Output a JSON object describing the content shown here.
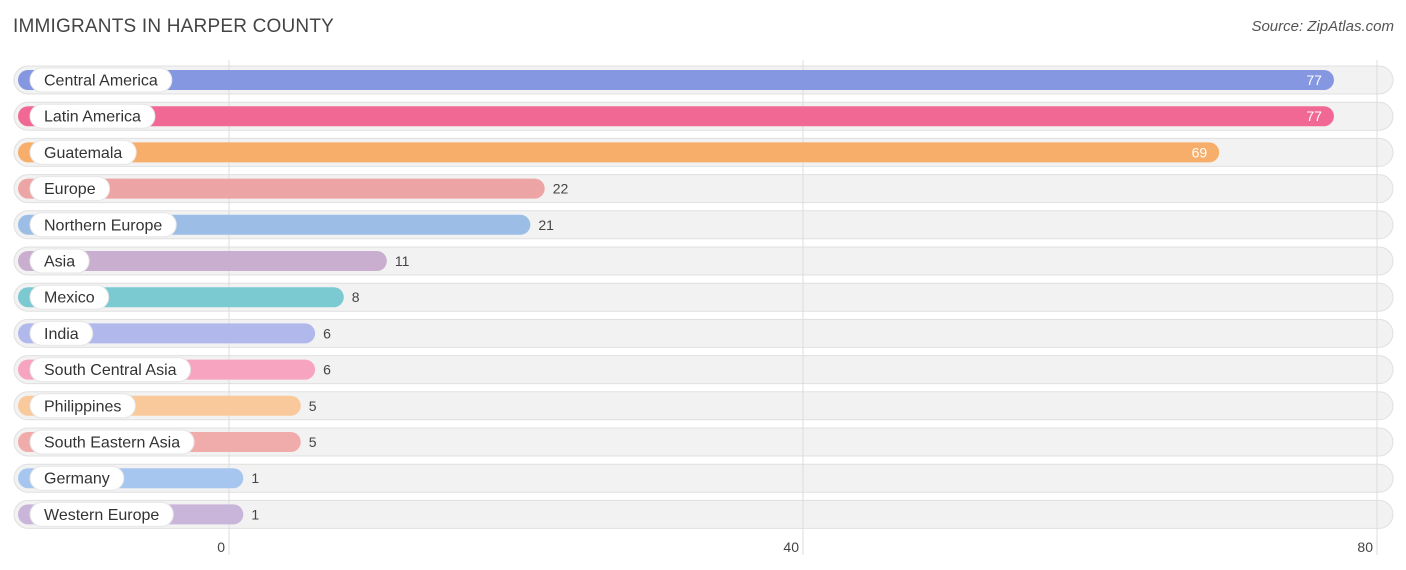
{
  "chart_data": {
    "type": "bar",
    "orientation": "horizontal",
    "title": "IMMIGRANTS IN HARPER COUNTY",
    "source": "Source: ZipAtlas.com",
    "xlabel": "",
    "ylabel": "",
    "xlim": [
      0,
      80
    ],
    "ticks": [
      0,
      40,
      80
    ],
    "grid": true,
    "categories": [
      "Central America",
      "Latin America",
      "Guatemala",
      "Europe",
      "Northern Europe",
      "Asia",
      "Mexico",
      "India",
      "South Central Asia",
      "Philippines",
      "South Eastern Asia",
      "Germany",
      "Western Europe"
    ],
    "values": [
      77,
      77,
      69,
      22,
      21,
      11,
      8,
      6,
      6,
      5,
      5,
      1,
      1
    ],
    "colors": [
      "#8497e0",
      "#f26895",
      "#f7ae6a",
      "#eda4a4",
      "#9bbde6",
      "#c9aed0",
      "#7bc9d1",
      "#b1b9ec",
      "#f6a4bf",
      "#f9c99b",
      "#f0acab",
      "#a7c6ef",
      "#cab5da"
    ]
  }
}
